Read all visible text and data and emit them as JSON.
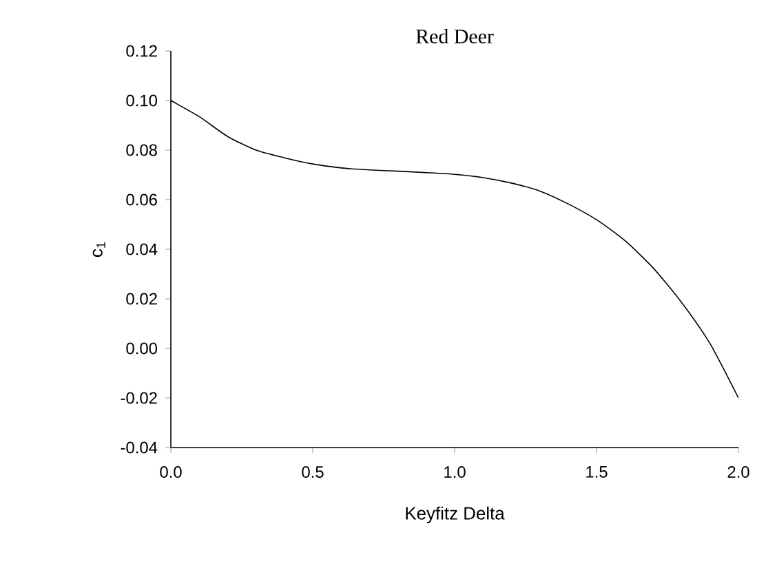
{
  "chart_data": {
    "type": "line",
    "title": "Red Deer",
    "xlabel": "Keyfitz Delta",
    "ylabel": "c$_{1}$",
    "x": [
      0,
      0.1,
      0.2,
      0.3,
      0.4,
      0.5,
      0.6,
      0.7,
      0.8,
      0.9,
      1.0,
      1.1,
      1.2,
      1.3,
      1.4,
      1.5,
      1.6,
      1.7,
      1.8,
      1.9,
      2.0
    ],
    "series": [
      {
        "color": "#000000",
        "values": [
          0.1,
          0.0935,
          0.0855,
          0.08,
          0.0769,
          0.0744,
          0.0728,
          0.072,
          0.0715,
          0.0709,
          0.0702,
          0.0689,
          0.0667,
          0.0635,
          0.0583,
          0.0519,
          0.0435,
          0.0324,
          0.0185,
          0.0019,
          -0.02
        ]
      }
    ],
    "xlim": [
      0,
      2.0
    ],
    "ylim": [
      -0.04,
      0.12
    ],
    "xticks": [
      {
        "value": 0,
        "label": "0.0"
      },
      0.5,
      {
        "value": 1,
        "label": "1.0"
      },
      1.5,
      {
        "value": 2,
        "label": "2.0"
      }
    ],
    "yticks": [
      {
        "value": -0.04,
        "label": "-0.04"
      },
      {
        "value": -0.02,
        "label": "-0.02"
      },
      {
        "value": 0,
        "label": "0.00"
      },
      {
        "value": 0.02,
        "label": "0.02"
      },
      {
        "value": 0.04,
        "label": "0.04"
      },
      {
        "value": 0.06,
        "label": "0.06"
      },
      {
        "value": 0.08,
        "label": "0.08"
      },
      {
        "value": 0.1,
        "label": "0.10"
      },
      {
        "value": 0.12,
        "label": "0.12"
      }
    ],
    "grid": false,
    "marker": "none",
    "line_style": "solid"
  }
}
